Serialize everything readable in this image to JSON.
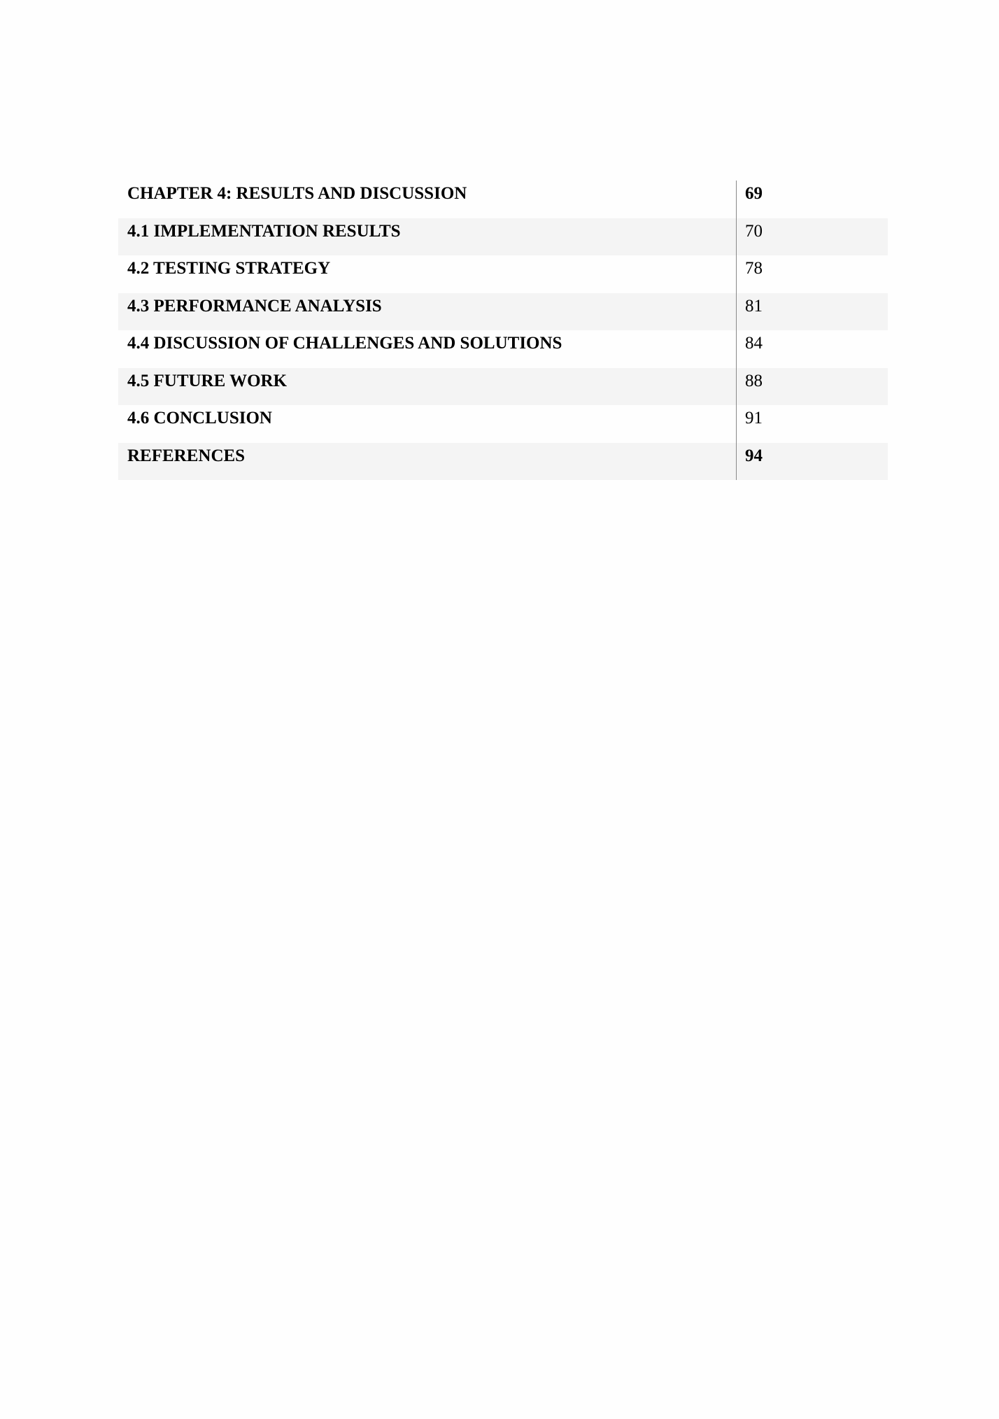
{
  "toc": [
    {
      "title": "CHAPTER 4: RESULTS AND DISCUSSION",
      "page": "69",
      "bold_page": true
    },
    {
      "title": "4.1 IMPLEMENTATION RESULTS",
      "page": "70",
      "bold_page": false
    },
    {
      "title": "4.2 TESTING STRATEGY",
      "page": "78",
      "bold_page": false
    },
    {
      "title": "4.3 PERFORMANCE ANALYSIS",
      "page": "81",
      "bold_page": false
    },
    {
      "title": "4.4 DISCUSSION OF CHALLENGES AND SOLUTIONS",
      "page": "84",
      "bold_page": false
    },
    {
      "title": "4.5 FUTURE WORK",
      "page": "88",
      "bold_page": false
    },
    {
      "title": "4.6 CONCLUSION",
      "page": "91",
      "bold_page": false
    },
    {
      "title": "REFERENCES",
      "page": "94",
      "bold_page": true
    }
  ]
}
